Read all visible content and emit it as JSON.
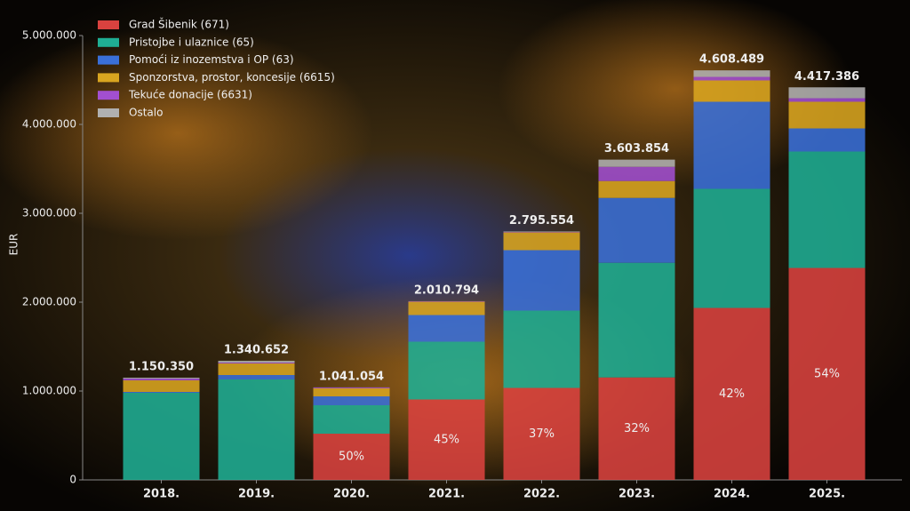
{
  "chart_data": {
    "type": "stacked_bar",
    "y_label": "EUR",
    "categories": [
      "2018.",
      "2019.",
      "2020.",
      "2021.",
      "2022.",
      "2023.",
      "2024.",
      "2025."
    ],
    "series": [
      {
        "name": "Grad Šibenik (671)",
        "color": "#d9423f",
        "values": [
          0,
          0,
          520000,
          905000,
          1035000,
          1153000,
          1935000,
          2385000
        ],
        "percent_labels": [
          null,
          null,
          "50%",
          "45%",
          "37%",
          "32%",
          "42%",
          "54%"
        ]
      },
      {
        "name": "Pristojbe i ulaznice (65)",
        "color": "#1fae94",
        "values": [
          980000,
          1130000,
          320000,
          650000,
          870000,
          1290000,
          1340000,
          1310000
        ]
      },
      {
        "name": "Pomoći iz inozemstva i OP (63)",
        "color": "#3a6fd8",
        "values": [
          10000,
          50000,
          100000,
          300000,
          680000,
          730000,
          980000,
          260000
        ]
      },
      {
        "name": "Sponzorstva, prostor, koncesije (6615)",
        "color": "#d9a520",
        "values": [
          130000,
          130000,
          90000,
          150000,
          200000,
          190000,
          240000,
          300000
        ]
      },
      {
        "name": "Tekuće donacije (6631)",
        "color": "#a24fd0",
        "values": [
          20000,
          10000,
          10000,
          5000,
          5000,
          160000,
          40000,
          40000
        ]
      },
      {
        "name": "Ostalo",
        "color": "#b0b0b0",
        "values": [
          10350,
          20652,
          1054,
          794,
          5554,
          80854,
          73489,
          122386
        ]
      }
    ],
    "totals": [
      1150350,
      1340652,
      1041054,
      2010794,
      2795554,
      3603854,
      4608489,
      4417386
    ],
    "total_labels": [
      "1.150.350",
      "1.340.652",
      "1.041.054",
      "2.010.794",
      "2.795.554",
      "3.603.854",
      "4.608.489",
      "4.417.386"
    ],
    "ylim": [
      0,
      5000000
    ],
    "yticks": [
      0,
      {
        "value": 1000000,
        "label": "1.000.000"
      },
      {
        "value": 2000000,
        "label": "2.000.000"
      },
      {
        "value": 3000000,
        "label": "3.000.000"
      },
      {
        "value": 4000000,
        "label": "4.000.000"
      },
      {
        "value": 5000000,
        "label": "5.000.000"
      }
    ]
  }
}
